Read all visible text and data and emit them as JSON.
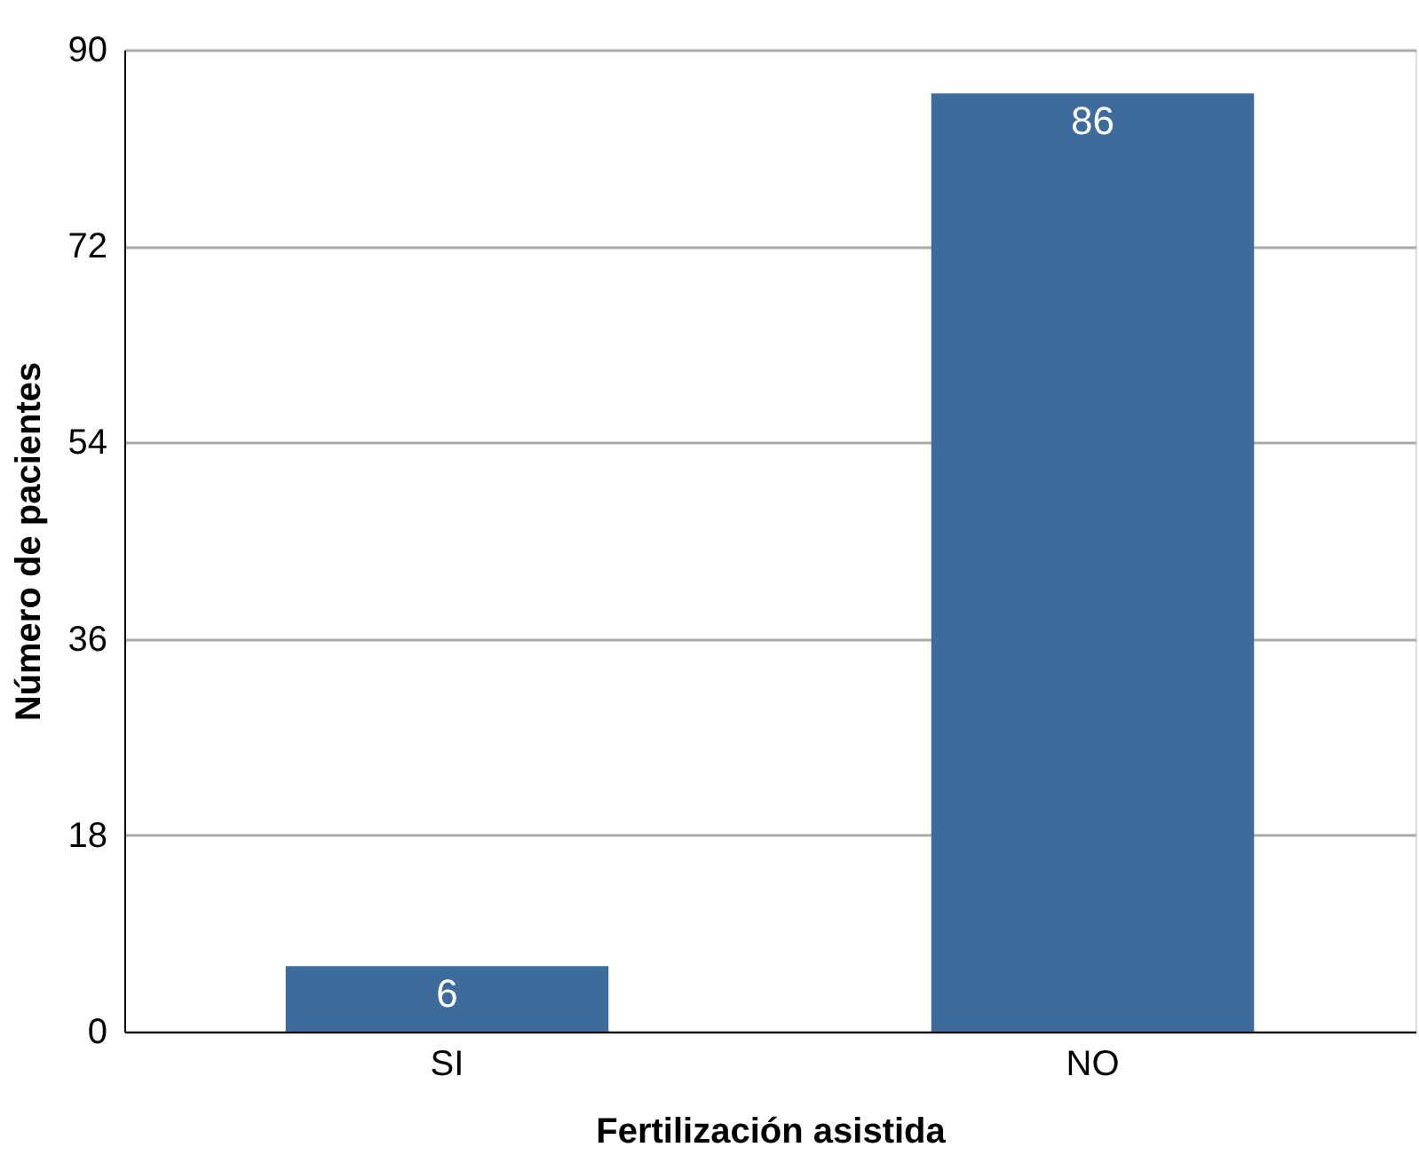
{
  "chart_data": {
    "type": "bar",
    "xlabel": "Fertilización asistida",
    "ylabel": "Número de pacientes",
    "categories": [
      "SI",
      "NO"
    ],
    "values": [
      6,
      86
    ],
    "color": "#3d6b9b",
    "ylim": [
      0,
      90
    ],
    "yticks": [
      0,
      18,
      36,
      54,
      72,
      90
    ],
    "grid": "y",
    "data_labels": true
  }
}
